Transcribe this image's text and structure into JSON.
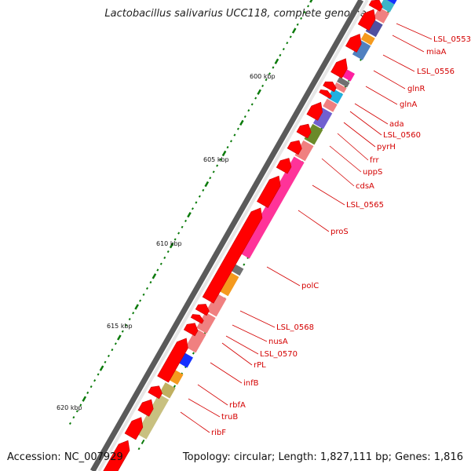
{
  "title": "Lactobacillus salivarius UCC118, complete genome",
  "footer": {
    "accession": "Accession: NC_007929",
    "topology": "Topology: circular; Length: 1,827,111 bp; Genes: 1,816"
  },
  "kbp_labels": [
    "600 kbp",
    "605 kbp",
    "610 kbp",
    "615 kbp",
    "620 kbp"
  ],
  "gene_labels": [
    "LSL_0553",
    "miaA",
    "LSL_0556",
    "glnR",
    "glnA",
    "ada",
    "LSL_0560",
    "pyrH",
    "frr",
    "uppS",
    "cdsA",
    "LSL_0565",
    "proS",
    "polC",
    "LSL_0568",
    "nusA",
    "LSL_0570",
    "rPL",
    "infB",
    "rbfA",
    "truB",
    "ribF"
  ],
  "colors": {
    "arrow": "#ff0000",
    "label": "#d40000",
    "tick": "#0a7a0a"
  }
}
